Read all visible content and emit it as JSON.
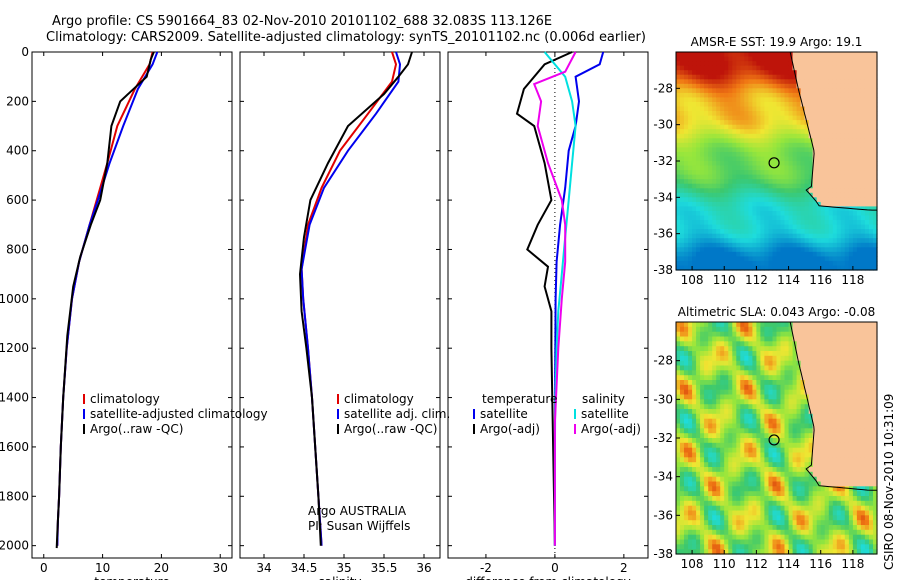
{
  "title": {
    "line1": "Argo profile: CS 5901664_83 02-Nov-2010 20101102_688 32.083S 113.126E",
    "line2": "Climatology: CARS2009. Satellite-adjusted climatology: synTS_20101102.nc (0.006d earlier)"
  },
  "side_label": "CSIRO 08-Nov-2010 10:31:09",
  "colors": {
    "climatology": "#e00000",
    "satellite": "#0000ee",
    "argo": "#000000",
    "salinity_sat": "#00e0e0",
    "salinity_argo": "#ee00ee",
    "land": "#f9c49a"
  },
  "chart_data": [
    {
      "type": "line",
      "xlabel": "temperature",
      "xlim": [
        -2,
        32
      ],
      "xticks": [
        0,
        10,
        20,
        30
      ],
      "ylim": [
        2050,
        0
      ],
      "yticks": [
        0,
        200,
        400,
        600,
        800,
        1000,
        1200,
        1400,
        1600,
        1800,
        2000
      ],
      "legend": {
        "position": "lower-left",
        "entries": [
          "climatology",
          "satellite-adjusted climatology",
          "Argo(..raw -QC)"
        ]
      },
      "series": [
        {
          "name": "climatology",
          "color": "#e00000",
          "x": [
            18.5,
            18.0,
            15.5,
            12.5,
            10.8,
            9.0,
            7.8,
            6.0,
            4.8,
            3.9,
            3.3,
            2.9,
            2.6,
            2.4,
            2.3
          ],
          "y": [
            0,
            50,
            150,
            300,
            450,
            600,
            700,
            850,
            1000,
            1200,
            1400,
            1600,
            1800,
            1900,
            2000
          ]
        },
        {
          "name": "satellite-adjusted climatology",
          "color": "#0000ee",
          "x": [
            19.3,
            18.5,
            16.0,
            13.5,
            11.2,
            9.2,
            7.8,
            6.0,
            4.8,
            3.9,
            3.3,
            2.9,
            2.6,
            2.4,
            2.3
          ],
          "y": [
            0,
            50,
            150,
            300,
            450,
            600,
            700,
            850,
            1000,
            1200,
            1400,
            1600,
            1800,
            1900,
            2000
          ]
        },
        {
          "name": "Argo(..raw -QC)",
          "color": "#000000",
          "x": [
            18.7,
            18.2,
            17.5,
            13.0,
            11.5,
            10.8,
            9.6,
            8.0,
            6.2,
            5.0,
            4.0,
            3.3,
            2.9,
            2.6,
            2.3,
            2.2
          ],
          "y": [
            0,
            30,
            100,
            200,
            300,
            450,
            600,
            700,
            830,
            950,
            1150,
            1400,
            1600,
            1800,
            1950,
            2010
          ]
        }
      ]
    },
    {
      "type": "line",
      "xlabel": "salinity",
      "xlim": [
        33.7,
        36.2
      ],
      "xticks": [
        34,
        34.5,
        35,
        35.5,
        36
      ],
      "ylim": [
        2050,
        0
      ],
      "yticks": [
        0,
        200,
        400,
        600,
        800,
        1000,
        1200,
        1400,
        1600,
        1800,
        2000
      ],
      "legend": {
        "position": "lower-right",
        "entries": [
          "climatology",
          "satellite adj. clim.",
          "Argo(..raw -QC)"
        ]
      },
      "annotation": [
        "Argo AUSTRALIA",
        "PI: Susan Wijffels"
      ],
      "series": [
        {
          "name": "climatology",
          "color": "#e00000",
          "x": [
            35.6,
            35.65,
            35.6,
            35.3,
            34.95,
            34.72,
            34.55,
            34.47,
            34.49,
            34.55,
            34.6,
            34.64,
            34.68,
            34.71,
            34.72
          ],
          "y": [
            0,
            50,
            120,
            250,
            400,
            550,
            700,
            880,
            1000,
            1200,
            1400,
            1600,
            1800,
            1950,
            2000
          ]
        },
        {
          "name": "satellite adj. clim.",
          "color": "#0000ee",
          "x": [
            35.65,
            35.7,
            35.68,
            35.4,
            35.05,
            34.75,
            34.57,
            34.47,
            34.49,
            34.55,
            34.6,
            34.64,
            34.68,
            34.71,
            34.72
          ],
          "y": [
            0,
            50,
            120,
            250,
            400,
            550,
            700,
            880,
            1000,
            1200,
            1400,
            1600,
            1800,
            1950,
            2000
          ]
        },
        {
          "name": "Argo(..raw -QC)",
          "color": "#000000",
          "x": [
            35.85,
            35.8,
            35.68,
            35.5,
            35.05,
            34.8,
            34.58,
            34.5,
            34.45,
            34.47,
            34.53,
            34.6,
            34.64,
            34.68,
            34.71
          ],
          "y": [
            0,
            50,
            100,
            170,
            300,
            450,
            600,
            750,
            900,
            1050,
            1200,
            1400,
            1600,
            1800,
            2000
          ]
        }
      ]
    },
    {
      "type": "line",
      "xlabel": "difference from climatology",
      "xlim": [
        -3.1,
        2.7
      ],
      "xticks": [
        -2,
        0,
        2
      ],
      "ylim": [
        2050,
        0
      ],
      "yticks": [
        0,
        200,
        400,
        600,
        800,
        1000,
        1200,
        1400,
        1600,
        1800,
        2000
      ],
      "legend": {
        "position": "lower",
        "headers": [
          "temperature",
          "salinity"
        ],
        "entries": [
          "satellite",
          "Argo(-adj)",
          "satellite",
          "Argo(-adj)"
        ]
      },
      "series": [
        {
          "name": "temperature satellite",
          "color": "#0000ee",
          "x": [
            1.4,
            1.3,
            0.6,
            0.7,
            0.6,
            0.4,
            0.3,
            0.15,
            0.05,
            0.02,
            0.01,
            0.0,
            0.0
          ],
          "y": [
            0,
            50,
            100,
            200,
            300,
            400,
            550,
            700,
            850,
            1000,
            1300,
            1700,
            2000
          ]
        },
        {
          "name": "temperature Argo(-adj)",
          "color": "#000000",
          "x": [
            0.5,
            -0.3,
            -0.9,
            -1.1,
            -0.6,
            -0.3,
            -0.1,
            -0.5,
            -0.8,
            -0.2,
            -0.3,
            -0.1,
            -0.1,
            0.0
          ],
          "y": [
            0,
            50,
            150,
            250,
            300,
            450,
            600,
            700,
            800,
            870,
            950,
            1050,
            1200,
            2000
          ]
        },
        {
          "name": "salinity satellite",
          "color": "#00e0e0",
          "x": [
            -0.3,
            0.3,
            0.5,
            0.6,
            0.5,
            0.4,
            0.3,
            0.2,
            0.1,
            0.05,
            0.0,
            0.0
          ],
          "y": [
            0,
            100,
            200,
            300,
            450,
            600,
            750,
            900,
            1050,
            1200,
            1500,
            2000
          ]
        },
        {
          "name": "salinity Argo(-adj)",
          "color": "#ee00ee",
          "x": [
            0.6,
            0.3,
            -0.6,
            -0.4,
            -0.5,
            -0.2,
            0.2,
            0.3,
            0.3,
            0.2,
            0.1,
            0.0,
            0.0
          ],
          "y": [
            0,
            80,
            130,
            200,
            300,
            450,
            600,
            700,
            850,
            1000,
            1200,
            1500,
            2000
          ]
        }
      ]
    },
    {
      "type": "heatmap",
      "title": "AMSR-E SST: 19.9 Argo: 19.1",
      "xlim": [
        107,
        119.5
      ],
      "ylim": [
        -38,
        -26
      ],
      "xticks": [
        108,
        110,
        112,
        114,
        116,
        118
      ],
      "yticks": [
        -28,
        -30,
        -32,
        -34,
        -36,
        -38
      ],
      "marker": {
        "lon": 113.1,
        "lat": -32.1
      }
    },
    {
      "type": "heatmap",
      "title": "Altimetric SLA: 0.043 Argo: -0.08",
      "xlim": [
        107,
        119.5
      ],
      "ylim": [
        -38,
        -26
      ],
      "xticks": [
        108,
        110,
        112,
        114,
        116,
        118
      ],
      "yticks": [
        -28,
        -30,
        -32,
        -34,
        -36,
        -38
      ],
      "marker": {
        "lon": 113.1,
        "lat": -32.1
      }
    }
  ]
}
